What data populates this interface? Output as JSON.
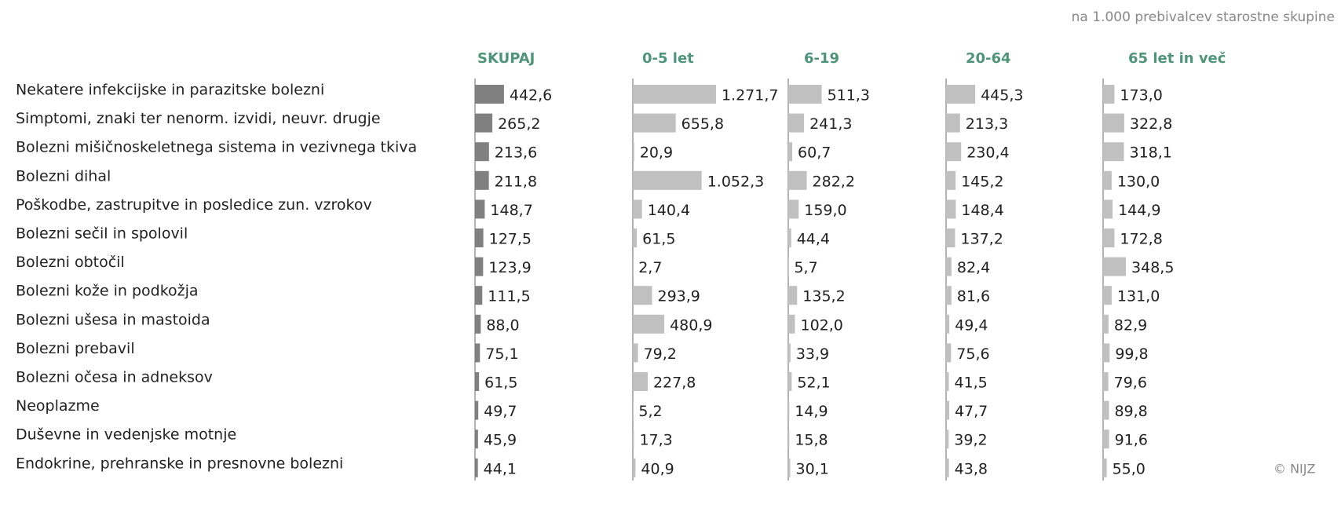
{
  "chart_data": {
    "type": "bar",
    "orientation": "horizontal",
    "subtitle": "na 1.000 prebivalcev starostne skupine",
    "source": "© NIJZ",
    "categories": [
      "Nekatere infekcijske in parazitske bolezni",
      "Simptomi, znaki ter nenorm. izvidi, neuvr. drugje",
      "Bolezni mišičnoskeletnega sistema in vezivnega tkiva",
      "Bolezni dihal",
      "Poškodbe, zastrupitve in posledice zun. vzrokov",
      "Bolezni sečil in spolovil",
      "Bolezni obtočil",
      "Bolezni kože in podkožja",
      "Bolezni ušesa in mastoida",
      "Bolezni prebavil",
      "Bolezni očesa in adneksov",
      "Neoplazme",
      "Duševne in vedenjske motnje",
      "Endokrine, prehranske in presnovne bolezni"
    ],
    "xlim": [
      0,
      2400
    ],
    "series": [
      {
        "name": "SKUPAJ",
        "color": "#808080",
        "values": [
          442.6,
          265.2,
          213.6,
          211.8,
          148.7,
          127.5,
          123.9,
          111.5,
          88.0,
          75.1,
          61.5,
          49.7,
          45.9,
          44.1
        ],
        "value_labels": [
          "442,6",
          "265,2",
          "213,6",
          "211,8",
          "148,7",
          "127,5",
          "123,9",
          "111,5",
          "88,0",
          "75,1",
          "61,5",
          "49,7",
          "45,9",
          "44,1"
        ]
      },
      {
        "name": "0-5 let",
        "color": "#c0c0c0",
        "values": [
          1271.7,
          655.8,
          20.9,
          1052.3,
          140.4,
          61.5,
          2.7,
          293.9,
          480.9,
          79.2,
          227.8,
          5.2,
          17.3,
          40.9
        ],
        "value_labels": [
          "1.271,7",
          "655,8",
          "20,9",
          "1.052,3",
          "140,4",
          "61,5",
          "2,7",
          "293,9",
          "480,9",
          "79,2",
          "227,8",
          "5,2",
          "17,3",
          "40,9"
        ]
      },
      {
        "name": "6-19",
        "color": "#c0c0c0",
        "values": [
          511.3,
          241.3,
          60.7,
          282.2,
          159.0,
          44.4,
          5.7,
          135.2,
          102.0,
          33.9,
          52.1,
          14.9,
          15.8,
          30.1
        ],
        "value_labels": [
          "511,3",
          "241,3",
          "60,7",
          "282,2",
          "159,0",
          "44,4",
          "5,7",
          "135,2",
          "102,0",
          "33,9",
          "52,1",
          "14,9",
          "15,8",
          "30,1"
        ]
      },
      {
        "name": "20-64",
        "color": "#c0c0c0",
        "values": [
          445.3,
          213.3,
          230.4,
          145.2,
          148.4,
          137.2,
          82.4,
          81.6,
          49.4,
          75.6,
          41.5,
          47.7,
          39.2,
          43.8
        ],
        "value_labels": [
          "445,3",
          "213,3",
          "230,4",
          "145,2",
          "148,4",
          "137,2",
          "82,4",
          "81,6",
          "49,4",
          "75,6",
          "41,5",
          "47,7",
          "39,2",
          "43,8"
        ]
      },
      {
        "name": "65 let in več",
        "color": "#c0c0c0",
        "values": [
          173.0,
          322.8,
          318.1,
          130.0,
          144.9,
          172.8,
          348.5,
          131.0,
          82.9,
          99.8,
          79.6,
          89.8,
          91.6,
          55.0
        ],
        "value_labels": [
          "173,0",
          "322,8",
          "318,1",
          "130,0",
          "144,9",
          "172,8",
          "348,5",
          "131,0",
          "82,9",
          "99,8",
          "79,6",
          "89,8",
          "91,6",
          "55,0"
        ]
      }
    ]
  }
}
